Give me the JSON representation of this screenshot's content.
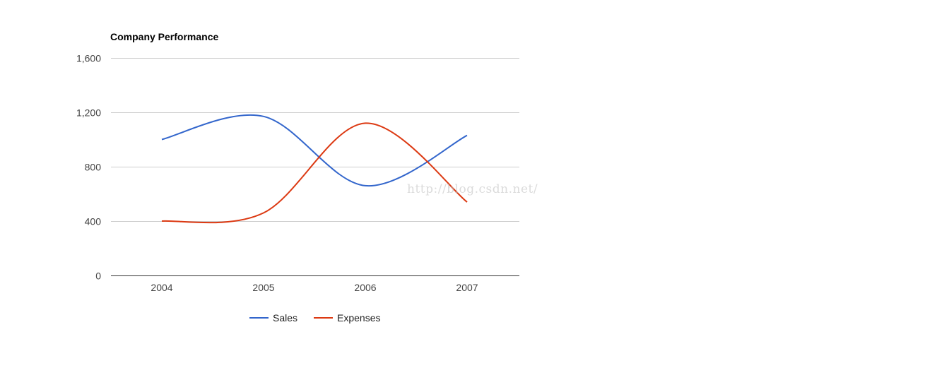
{
  "chart_data": {
    "type": "line",
    "title": "Company Performance",
    "categories": [
      "2004",
      "2005",
      "2006",
      "2007"
    ],
    "series": [
      {
        "name": "Sales",
        "values": [
          1000,
          1170,
          660,
          1030
        ],
        "color": "#3366cc"
      },
      {
        "name": "Expenses",
        "values": [
          400,
          460,
          1120,
          540
        ],
        "color": "#dc3912"
      }
    ],
    "y_ticks": [
      0,
      400,
      800,
      1200,
      1600
    ],
    "y_tick_labels": [
      "0",
      "400",
      "800",
      "1,200",
      "1,600"
    ],
    "ylim": [
      0,
      1600
    ],
    "grid": true,
    "curve": "smooth",
    "legend_position": "bottom"
  },
  "watermark": "http://blog.csdn.net/"
}
